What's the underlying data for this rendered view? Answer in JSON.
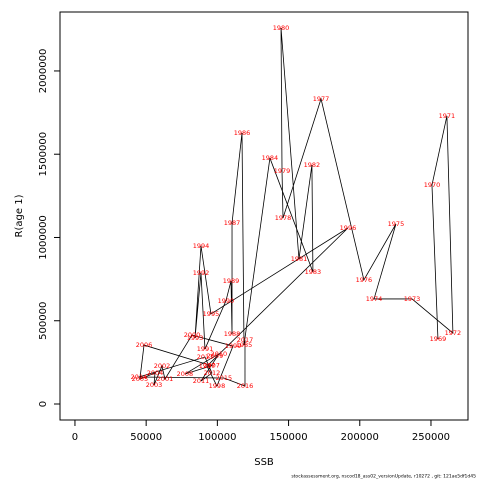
{
  "chart_data": {
    "type": "scatter",
    "xlabel": "SSB",
    "ylabel": "R(age 1)",
    "footnote": "stockassessment.org, nscod18_ass02_versionUpdate, r10272 , git: 121ae5df1d45",
    "labels": [
      1969,
      1970,
      1971,
      1972,
      1973,
      1974,
      1975,
      1976,
      1977,
      1978,
      1979,
      1980,
      1981,
      1982,
      1983,
      1984,
      1985,
      1986,
      1987,
      1988,
      1989,
      1990,
      1991,
      1992,
      1993,
      1994,
      1995,
      1996,
      1997,
      1998,
      1999,
      2000,
      2001,
      2002,
      2003,
      2004,
      2005,
      2006,
      2007,
      2008,
      2009,
      2010,
      2011,
      2012,
      2013,
      2014,
      2015,
      2016,
      2017
    ],
    "x": [
      254900,
      250700,
      261200,
      265400,
      236700,
      210000,
      225400,
      202900,
      172800,
      146100,
      145400,
      144700,
      157300,
      166400,
      167100,
      136900,
      118700,
      117300,
      110300,
      110300,
      109600,
      106000,
      91300,
      88500,
      84300,
      88500,
      95500,
      191700,
      92700,
      99700,
      111000,
      82200,
      63200,
      61100,
      55500,
      56200,
      45600,
      48500,
      96000,
      77200,
      98300,
      101100,
      88500,
      96200,
      91300,
      44900,
      104600,
      119400,
      119400
    ],
    "values": [
      390000,
      1315000,
      1730000,
      426000,
      631000,
      631000,
      1081000,
      745000,
      1832000,
      1117000,
      1399000,
      2258000,
      871000,
      1435000,
      793000,
      1477000,
      354000,
      1628000,
      1087000,
      420000,
      739000,
      619000,
      330000,
      787000,
      396000,
      949000,
      541000,
      1057000,
      228000,
      108000,
      348000,
      414000,
      150000,
      228000,
      114000,
      186000,
      150000,
      354000,
      230000,
      180000,
      288000,
      300000,
      138000,
      186000,
      282000,
      162000,
      156000,
      108000,
      384000
    ],
    "color": "#ff0000",
    "line_color": "#000000",
    "xlim": [
      -10500,
      276000
    ],
    "ylim": [
      -96000,
      2354000
    ],
    "xticks": [
      0,
      50000,
      100000,
      150000,
      200000,
      250000
    ],
    "yticks": [
      0,
      500000,
      1000000,
      1500000,
      2000000
    ]
  }
}
